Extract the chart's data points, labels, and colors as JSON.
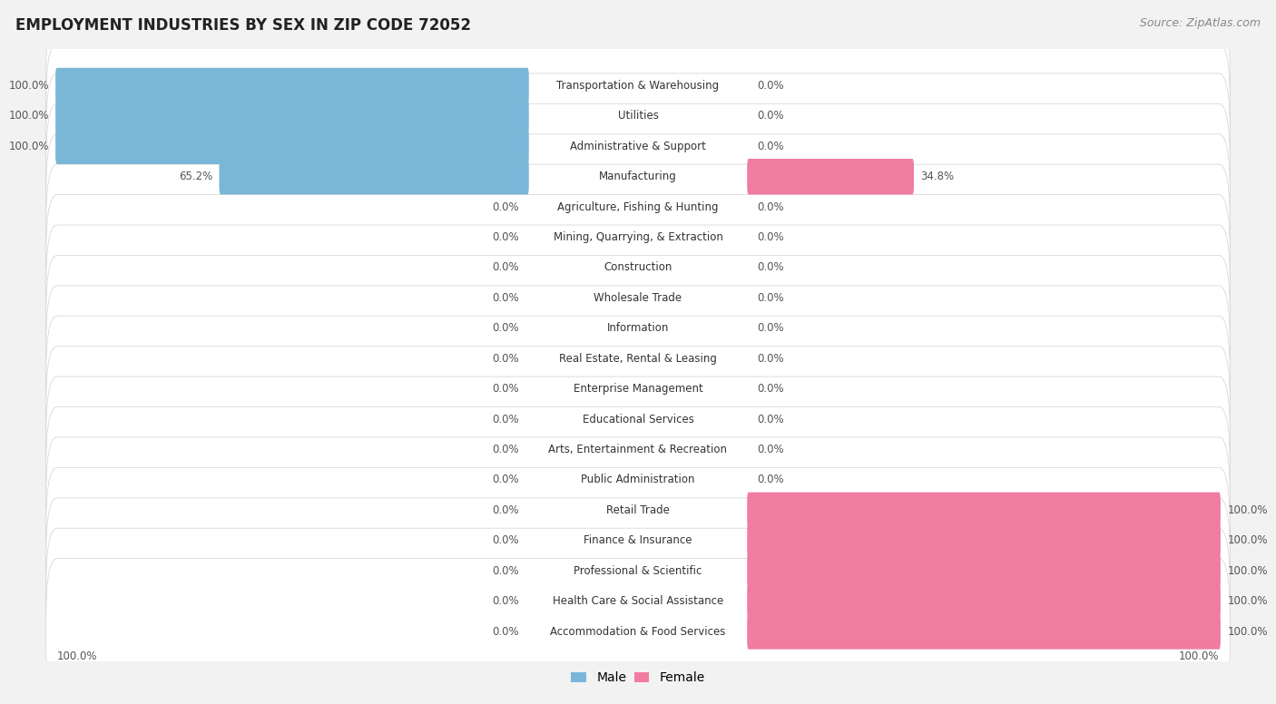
{
  "title": "EMPLOYMENT INDUSTRIES BY SEX IN ZIP CODE 72052",
  "source": "Source: ZipAtlas.com",
  "categories": [
    "Transportation & Warehousing",
    "Utilities",
    "Administrative & Support",
    "Manufacturing",
    "Agriculture, Fishing & Hunting",
    "Mining, Quarrying, & Extraction",
    "Construction",
    "Wholesale Trade",
    "Information",
    "Real Estate, Rental & Leasing",
    "Enterprise Management",
    "Educational Services",
    "Arts, Entertainment & Recreation",
    "Public Administration",
    "Retail Trade",
    "Finance & Insurance",
    "Professional & Scientific",
    "Health Care & Social Assistance",
    "Accommodation & Food Services"
  ],
  "male": [
    100.0,
    100.0,
    100.0,
    65.2,
    0.0,
    0.0,
    0.0,
    0.0,
    0.0,
    0.0,
    0.0,
    0.0,
    0.0,
    0.0,
    0.0,
    0.0,
    0.0,
    0.0,
    0.0
  ],
  "female": [
    0.0,
    0.0,
    0.0,
    34.8,
    0.0,
    0.0,
    0.0,
    0.0,
    0.0,
    0.0,
    0.0,
    0.0,
    0.0,
    0.0,
    100.0,
    100.0,
    100.0,
    100.0,
    100.0
  ],
  "male_color": "#7ab6d8",
  "female_color": "#f07ca0",
  "row_bg_color": "#ffffff",
  "row_border_color": "#d8d8d8",
  "fig_bg_color": "#f2f2f2",
  "title_color": "#222222",
  "source_color": "#888888",
  "label_color": "#555555",
  "cat_color": "#333333",
  "title_fontsize": 12,
  "source_fontsize": 9,
  "label_fontsize": 8.5,
  "cat_fontsize": 8.5,
  "legend_fontsize": 10
}
